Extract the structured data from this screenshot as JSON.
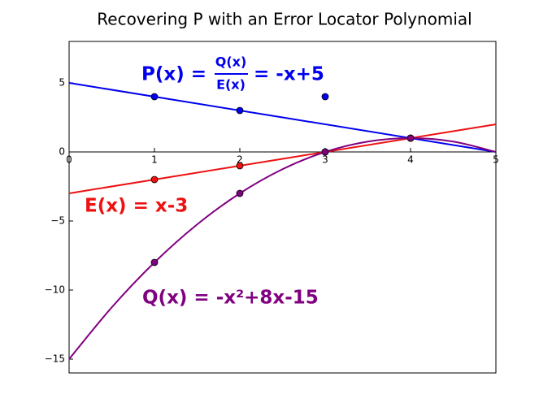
{
  "chart_data": {
    "type": "line",
    "title": "Recovering P with an Error Locator Polynomial",
    "xlim": [
      0,
      5
    ],
    "ylim": [
      -16,
      8
    ],
    "xticks": [
      0,
      1,
      2,
      3,
      4,
      5
    ],
    "yticks": [
      {
        "value": -15,
        "label": "−15"
      },
      {
        "value": -10,
        "label": "−10"
      },
      {
        "value": -5,
        "label": "−5"
      },
      0,
      5
    ],
    "lines": [
      {
        "color": "#0000ee",
        "x": [
          0,
          5
        ],
        "values": [
          5,
          0
        ]
      },
      {
        "color": "#ee1111",
        "x": [
          0,
          5
        ],
        "values": [
          -3,
          2
        ]
      },
      {
        "color": "#800080",
        "x": [
          0,
          0.5,
          1,
          1.5,
          2,
          2.5,
          3,
          3.5,
          4,
          4.5,
          5
        ],
        "values": [
          -15,
          -11.25,
          -8,
          -5.25,
          -3,
          -1.25,
          0,
          0.75,
          1,
          0.75,
          0
        ]
      }
    ],
    "points": [
      {
        "color": "#0000ee",
        "x": [
          1,
          2,
          3,
          4
        ],
        "values": [
          4,
          3,
          4,
          1
        ]
      },
      {
        "color": "#ee1111",
        "x": [
          1,
          2,
          3,
          4
        ],
        "values": [
          -2,
          -1,
          0,
          1
        ]
      },
      {
        "color": "#800080",
        "x": [
          1,
          2,
          3,
          4
        ],
        "values": [
          -8,
          -3,
          0,
          1
        ]
      }
    ],
    "annotations": {
      "p_left": "P(x) = ",
      "p_num": "Q(x)",
      "p_den": "E(x)",
      "p_right": "= -x+5",
      "e": "E(x) = x-3",
      "q": "Q(x) = -x²+8x-15"
    }
  }
}
